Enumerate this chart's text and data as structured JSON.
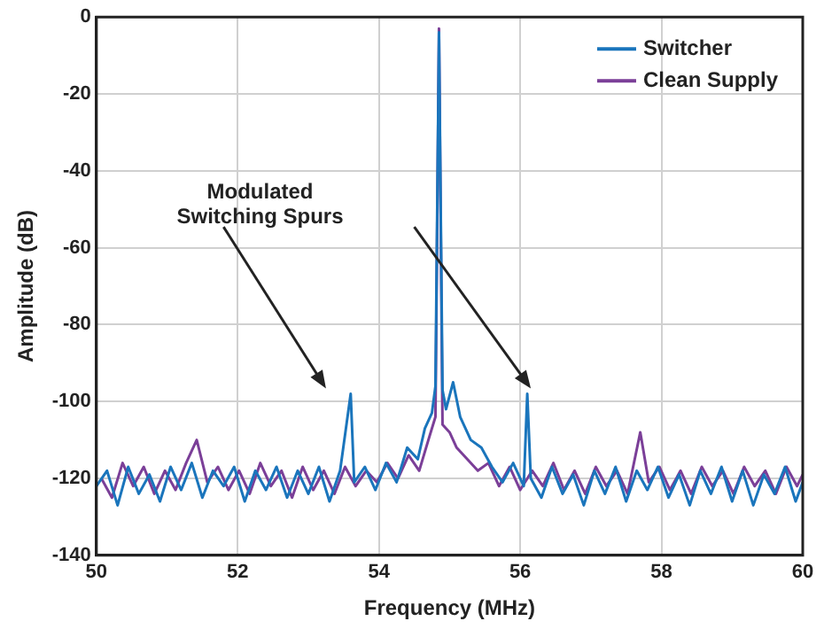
{
  "chart_data": {
    "type": "line",
    "xlabel": "Frequency (MHz)",
    "ylabel": "Amplitude (dB)",
    "xlim": [
      50,
      60
    ],
    "xticks": [
      50,
      52,
      54,
      56,
      58,
      60
    ],
    "ylim": [
      -140,
      0
    ],
    "yticks": [
      -140,
      -120,
      -100,
      -80,
      -60,
      -40,
      -20,
      0
    ],
    "grid": true,
    "legend": "top right",
    "marker": "none",
    "line_style": "solid",
    "annotations": [
      "Modulated Switching Spurs"
    ],
    "series": [
      {
        "name": "Switcher",
        "color": "#1a75bc",
        "x": [
          50.0,
          50.15,
          50.3,
          50.45,
          50.6,
          50.75,
          50.9,
          51.05,
          51.2,
          51.35,
          51.5,
          51.65,
          51.8,
          51.95,
          52.1,
          52.25,
          52.4,
          52.55,
          52.7,
          52.85,
          53.0,
          53.15,
          53.3,
          53.45,
          53.6,
          53.65,
          53.8,
          53.95,
          54.1,
          54.25,
          54.4,
          54.55,
          54.65,
          54.75,
          54.8,
          54.85,
          54.9,
          54.95,
          55.05,
          55.15,
          55.3,
          55.45,
          55.6,
          55.75,
          55.9,
          56.05,
          56.1,
          56.15,
          56.3,
          56.45,
          56.6,
          56.75,
          56.9,
          57.05,
          57.2,
          57.35,
          57.5,
          57.65,
          57.8,
          57.95,
          58.1,
          58.25,
          58.4,
          58.55,
          58.7,
          58.85,
          59.0,
          59.15,
          59.3,
          59.45,
          59.6,
          59.75,
          59.9,
          60.0
        ],
        "values": [
          -122,
          -118,
          -127,
          -117,
          -124,
          -119,
          -126,
          -117,
          -123,
          -116,
          -125,
          -118,
          -122,
          -117,
          -126,
          -118,
          -123,
          -117,
          -125,
          -118,
          -124,
          -117,
          -126,
          -118,
          -98,
          -121,
          -117,
          -123,
          -116,
          -121,
          -112,
          -115,
          -107,
          -103,
          -96,
          -4,
          -97,
          -102,
          -95,
          -104,
          -110,
          -112,
          -117,
          -121,
          -116,
          -122,
          -98,
          -120,
          -125,
          -117,
          -124,
          -119,
          -127,
          -118,
          -124,
          -117,
          -126,
          -118,
          -123,
          -117,
          -125,
          -119,
          -127,
          -118,
          -124,
          -117,
          -126,
          -118,
          -127,
          -119,
          -124,
          -117,
          -126,
          -121
        ]
      },
      {
        "name": "Clean Supply",
        "color": "#7b3f98",
        "x": [
          50.07,
          50.22,
          50.37,
          50.52,
          50.67,
          50.82,
          50.97,
          51.12,
          51.27,
          51.42,
          51.57,
          51.72,
          51.87,
          52.02,
          52.17,
          52.32,
          52.47,
          52.62,
          52.77,
          52.92,
          53.07,
          53.22,
          53.37,
          53.52,
          53.67,
          53.82,
          53.97,
          54.12,
          54.27,
          54.42,
          54.57,
          54.7,
          54.8,
          54.85,
          54.9,
          55.0,
          55.1,
          55.25,
          55.4,
          55.55,
          55.7,
          55.85,
          56.0,
          56.17,
          56.32,
          56.47,
          56.62,
          56.77,
          56.92,
          57.07,
          57.22,
          57.37,
          57.52,
          57.7,
          57.82,
          57.97,
          58.12,
          58.27,
          58.42,
          58.57,
          58.72,
          58.87,
          59.02,
          59.17,
          59.32,
          59.47,
          59.62,
          59.77,
          59.92,
          60.0
        ],
        "values": [
          -120,
          -125,
          -116,
          -122,
          -117,
          -124,
          -118,
          -123,
          -116,
          -110,
          -121,
          -117,
          -123,
          -118,
          -124,
          -116,
          -122,
          -118,
          -125,
          -117,
          -123,
          -118,
          -124,
          -117,
          -122,
          -118,
          -121,
          -116,
          -120,
          -114,
          -118,
          -110,
          -104,
          -3,
          -106,
          -108,
          -112,
          -115,
          -118,
          -116,
          -122,
          -117,
          -123,
          -118,
          -122,
          -116,
          -123,
          -118,
          -124,
          -117,
          -122,
          -118,
          -124,
          -108,
          -121,
          -117,
          -123,
          -118,
          -124,
          -117,
          -122,
          -118,
          -124,
          -117,
          -122,
          -118,
          -124,
          -117,
          -122,
          -119
        ]
      }
    ]
  }
}
